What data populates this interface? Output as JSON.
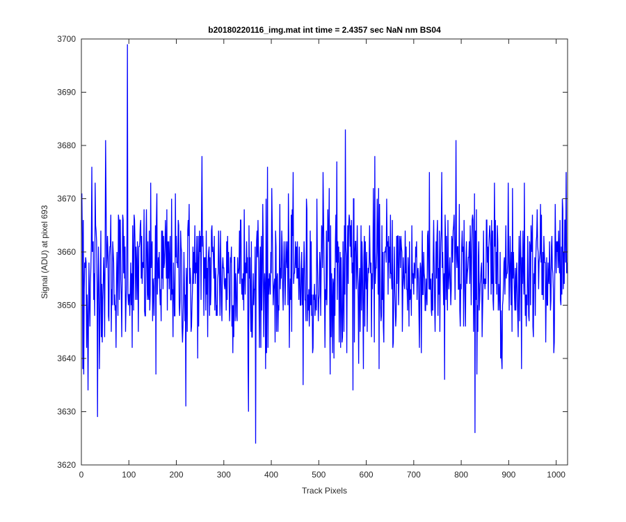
{
  "chart_data": {
    "type": "line",
    "title": "b20180220116_img.mat int time = 2.4357 sec  NaN nm BS04",
    "xlabel": "Track Pixels",
    "ylabel": "Signal (ADU) at pixel 693",
    "xlim": [
      0,
      1024
    ],
    "ylim": [
      3620,
      3700
    ],
    "xticks": [
      0,
      100,
      200,
      300,
      400,
      500,
      600,
      700,
      800,
      900,
      1000
    ],
    "yticks": [
      3620,
      3630,
      3640,
      3650,
      3660,
      3670,
      3680,
      3690,
      3700
    ],
    "grid": false,
    "series_color": "#0000ff",
    "series": [
      {
        "x_start": 1,
        "x_step": 1,
        "noise_mean": 3656,
        "noise_sd": 7,
        "values_sample": [
          [
            1,
            3671
          ],
          [
            3,
            3638
          ],
          [
            5,
            3637
          ],
          [
            14,
            3634
          ],
          [
            22,
            3676
          ],
          [
            29,
            3673
          ],
          [
            34,
            3629
          ],
          [
            51,
            3681
          ],
          [
            97,
            3699
          ],
          [
            98,
            3652
          ],
          [
            157,
            3637
          ],
          [
            220,
            3631
          ],
          [
            254,
            3678
          ],
          [
            352,
            3630
          ],
          [
            367,
            3624
          ],
          [
            467,
            3635
          ],
          [
            538,
            3677
          ],
          [
            556,
            3683
          ],
          [
            572,
            3634
          ],
          [
            618,
            3678
          ],
          [
            765,
            3636
          ],
          [
            789,
            3681
          ],
          [
            829,
            3626
          ],
          [
            908,
            3672
          ],
          [
            1013,
            3670
          ]
        ]
      }
    ]
  }
}
